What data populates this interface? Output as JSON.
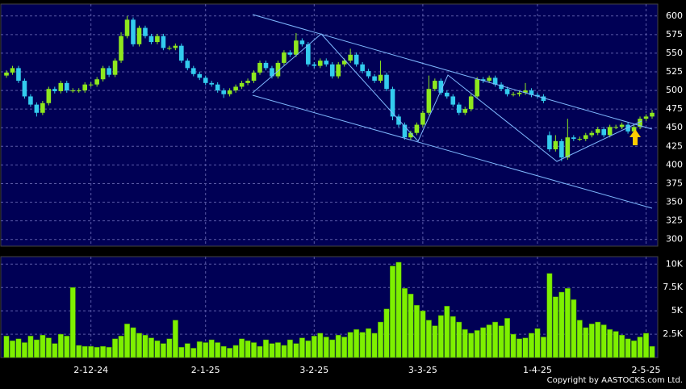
{
  "chart_data": [
    {
      "type": "candlestick",
      "categories": [
        null,
        null,
        null,
        null,
        null,
        null,
        null,
        null,
        null,
        null,
        null,
        null,
        null,
        null,
        "2-12-24",
        null,
        null,
        null,
        null,
        null,
        null,
        null,
        null,
        null,
        null,
        null,
        null,
        null,
        null,
        null,
        null,
        null,
        null,
        "2-1-25",
        null,
        null,
        null,
        null,
        null,
        null,
        null,
        null,
        null,
        null,
        null,
        null,
        null,
        null,
        null,
        null,
        null,
        "3-2-25",
        null,
        null,
        null,
        null,
        null,
        null,
        null,
        null,
        null,
        null,
        null,
        null,
        null,
        null,
        null,
        null,
        null,
        "3-3-25",
        null,
        null,
        null,
        null,
        null,
        null,
        null,
        null,
        null,
        null,
        null,
        null,
        null,
        null,
        null,
        null,
        null,
        null,
        "1-4-25",
        null,
        null,
        null,
        null,
        null,
        null,
        null,
        null,
        null,
        null,
        null,
        null,
        null,
        null,
        null,
        null,
        null,
        "2-5-25",
        null
      ],
      "open": [
        520,
        524,
        530,
        513,
        492,
        481,
        470,
        483,
        502,
        499,
        510,
        500,
        500,
        500,
        508,
        508,
        515,
        530,
        521,
        540,
        573,
        595,
        562,
        584,
        573,
        565,
        573,
        557,
        557,
        560,
        540,
        530,
        522,
        517,
        510,
        508,
        500,
        495,
        500,
        505,
        510,
        513,
        524,
        537,
        530,
        519,
        537,
        551,
        548,
        567,
        562,
        535,
        533,
        540,
        535,
        519,
        535,
        540,
        548,
        535,
        526,
        519,
        513,
        521,
        502,
        465,
        454,
        437,
        443,
        454,
        470,
        502,
        513,
        497,
        492,
        481,
        470,
        475,
        492,
        515,
        513,
        517,
        508,
        502,
        495,
        495,
        497,
        500,
        494,
        492,
        440,
        421,
        432,
        410,
        437,
        435,
        435,
        440,
        443,
        448,
        440,
        451,
        451,
        454,
        445,
        451,
        462,
        465
      ],
      "high": [
        527,
        533,
        533,
        516,
        495,
        484,
        486,
        505,
        505,
        513,
        513,
        503,
        503,
        511,
        511,
        518,
        533,
        533,
        543,
        578,
        600,
        598,
        587,
        587,
        576,
        576,
        576,
        560,
        563,
        563,
        543,
        533,
        525,
        520,
        513,
        511,
        503,
        503,
        508,
        513,
        516,
        527,
        540,
        540,
        533,
        540,
        554,
        554,
        577,
        570,
        565,
        538,
        543,
        543,
        538,
        538,
        543,
        556,
        551,
        538,
        529,
        522,
        540,
        524,
        505,
        468,
        457,
        446,
        457,
        473,
        520,
        516,
        516,
        500,
        495,
        484,
        478,
        495,
        518,
        518,
        520,
        520,
        511,
        505,
        498,
        500,
        510,
        503,
        497,
        495,
        445,
        440,
        435,
        462,
        440,
        438,
        443,
        446,
        451,
        451,
        454,
        454,
        457,
        457,
        454,
        465,
        468,
        474
      ],
      "low": [
        517,
        521,
        510,
        489,
        478,
        465,
        467,
        480,
        496,
        496,
        497,
        497,
        497,
        497,
        505,
        505,
        512,
        518,
        518,
        537,
        570,
        559,
        559,
        570,
        562,
        562,
        554,
        554,
        554,
        537,
        527,
        519,
        514,
        507,
        505,
        497,
        490,
        492,
        497,
        502,
        507,
        510,
        521,
        527,
        516,
        516,
        534,
        545,
        545,
        559,
        532,
        530,
        530,
        532,
        516,
        516,
        532,
        537,
        532,
        523,
        516,
        510,
        510,
        499,
        460,
        451,
        434,
        434,
        440,
        451,
        467,
        499,
        494,
        489,
        478,
        467,
        467,
        472,
        489,
        510,
        510,
        505,
        499,
        492,
        492,
        492,
        494,
        491,
        489,
        483,
        418,
        418,
        405,
        407,
        432,
        432,
        432,
        437,
        440,
        437,
        437,
        448,
        448,
        442,
        442,
        448,
        459,
        462
      ],
      "close": [
        524,
        530,
        513,
        492,
        481,
        470,
        483,
        502,
        499,
        510,
        500,
        500,
        500,
        508,
        508,
        515,
        530,
        521,
        540,
        573,
        595,
        562,
        584,
        573,
        565,
        573,
        557,
        557,
        560,
        540,
        530,
        522,
        517,
        510,
        508,
        500,
        495,
        500,
        505,
        510,
        513,
        524,
        537,
        530,
        519,
        537,
        551,
        548,
        567,
        562,
        535,
        533,
        540,
        535,
        519,
        535,
        540,
        548,
        535,
        526,
        519,
        513,
        521,
        502,
        465,
        454,
        437,
        443,
        454,
        470,
        502,
        513,
        497,
        492,
        481,
        470,
        475,
        492,
        515,
        513,
        517,
        508,
        502,
        495,
        495,
        497,
        500,
        494,
        492,
        486,
        421,
        432,
        410,
        437,
        435,
        435,
        440,
        443,
        448,
        440,
        451,
        451,
        454,
        445,
        451,
        462,
        465,
        470
      ],
      "up_color": "#8ee81e",
      "down_color": "#33ccee",
      "ylim": [
        291,
        616
      ],
      "yticks": [
        300,
        325,
        350,
        375,
        400,
        425,
        450,
        475,
        500,
        525,
        550,
        575,
        600
      ],
      "grid": true,
      "footer": "Copyright by AASTOCKS.com Ltd."
    },
    {
      "type": "bar",
      "values": [
        2300,
        1800,
        2000,
        1600,
        2300,
        1900,
        2400,
        2100,
        1500,
        2500,
        2300,
        7500,
        1300,
        1200,
        1200,
        1100,
        1200,
        1100,
        2000,
        2300,
        3600,
        3200,
        2600,
        2400,
        2100,
        1800,
        1500,
        2000,
        4000,
        1100,
        1500,
        1000,
        1700,
        1600,
        1900,
        1600,
        1200,
        1000,
        1300,
        2000,
        1800,
        1600,
        1200,
        1900,
        1500,
        1600,
        1300,
        1900,
        1500,
        2100,
        1800,
        2300,
        2600,
        2200,
        1900,
        2400,
        2200,
        2700,
        3000,
        2700,
        3100,
        2600,
        3800,
        5200,
        9800,
        10200,
        7400,
        6800,
        5600,
        5000,
        4000,
        3400,
        4500,
        5500,
        4400,
        3800,
        3000,
        2600,
        2900,
        3200,
        3500,
        3800,
        3400,
        4200,
        2500,
        2000,
        2100,
        2600,
        3100,
        2200,
        9000,
        6500,
        7000,
        7400,
        6200,
        4000,
        3200,
        3600,
        3800,
        3500,
        3000,
        2800,
        2400,
        2000,
        1800,
        2200,
        2600,
        1200
      ],
      "color": "#7ef000",
      "ylim": [
        0,
        10800
      ],
      "yticks": [
        {
          "value": 2500,
          "label": "2.5K"
        },
        {
          "value": 5000,
          "label": "5K"
        },
        {
          "value": 7500,
          "label": "7.5K"
        },
        {
          "value": 10000,
          "label": "10K"
        }
      ],
      "grid": true
    }
  ]
}
